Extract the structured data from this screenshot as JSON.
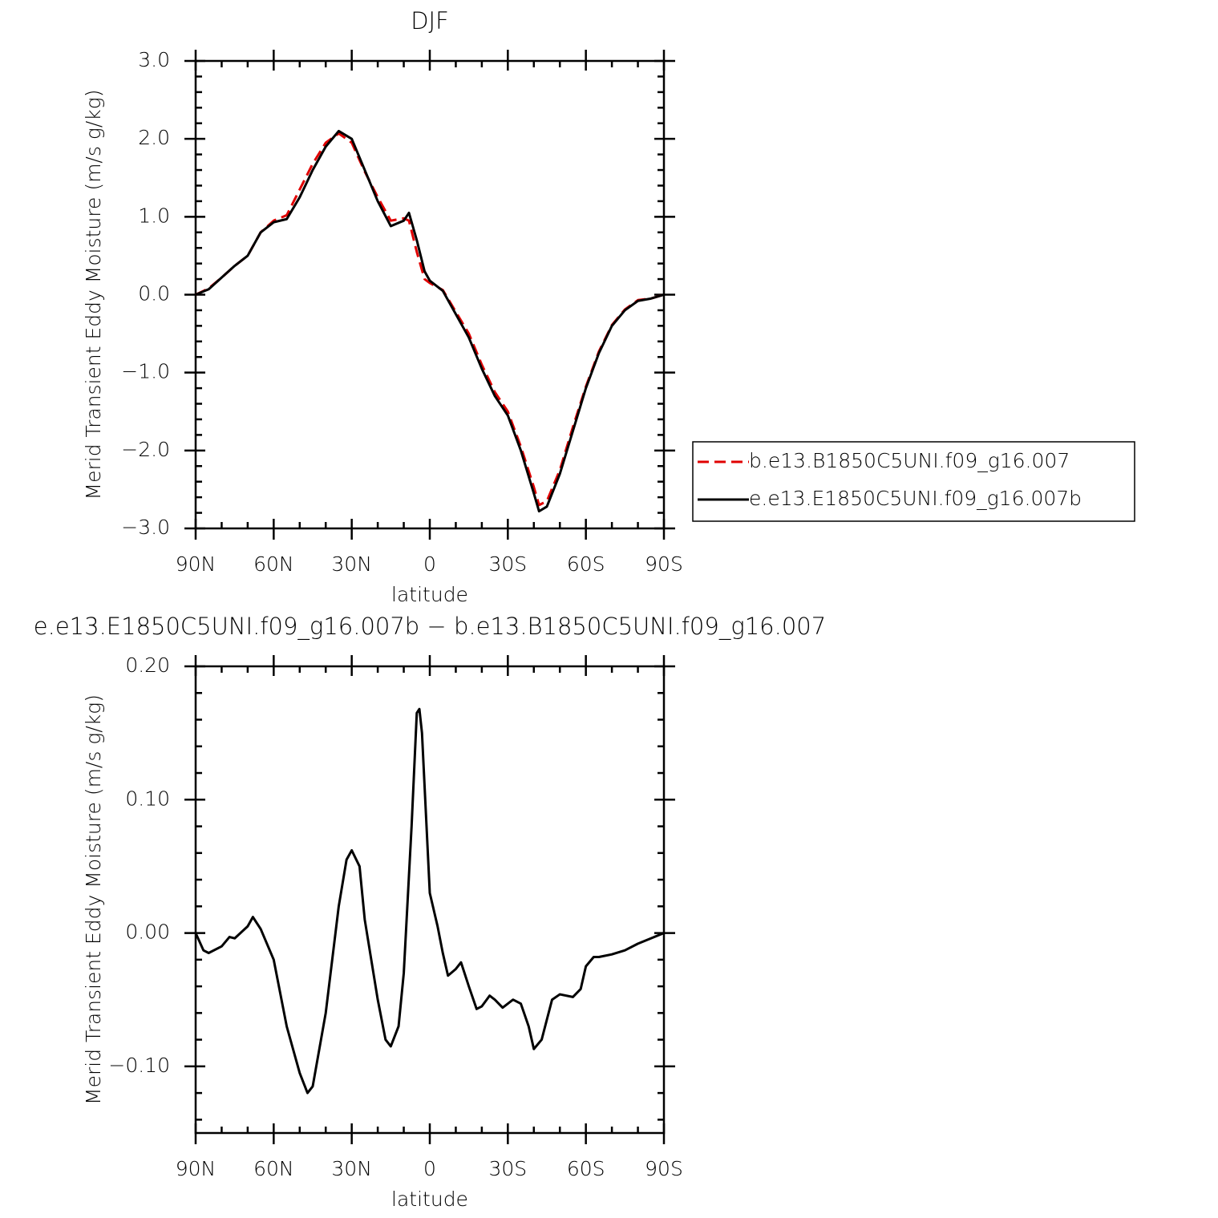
{
  "chart_data": [
    {
      "type": "line",
      "title": "DJF",
      "x_label": "latitude",
      "y_label": "Merid Transient Eddy Moisture (m/s g/kg)",
      "x": [
        90,
        85,
        80,
        75,
        70,
        65,
        60,
        55,
        50,
        45,
        40,
        35,
        30,
        25,
        20,
        15,
        10,
        8,
        5,
        2,
        0,
        -5,
        -10,
        -15,
        -20,
        -25,
        -30,
        -35,
        -40,
        -42,
        -45,
        -50,
        -55,
        -60,
        -65,
        -70,
        -75,
        -80,
        -85,
        -90
      ],
      "series": [
        {
          "name": "b.e13.B1850C5UNI.f09_g16.007",
          "color": "#e00000",
          "dashed": true,
          "values": [
            0,
            0.08,
            0.22,
            0.37,
            0.5,
            0.8,
            0.95,
            1.02,
            1.35,
            1.68,
            1.95,
            2.07,
            1.95,
            1.58,
            1.25,
            0.95,
            0.98,
            0.95,
            0.55,
            0.2,
            0.15,
            0.06,
            -0.22,
            -0.5,
            -0.9,
            -1.25,
            -1.5,
            -1.95,
            -2.47,
            -2.7,
            -2.65,
            -2.25,
            -1.7,
            -1.18,
            -0.73,
            -0.39,
            -0.19,
            -0.07,
            -0.05,
            0
          ]
        },
        {
          "name": "e.e13.E1850C5UNI.f09_g16.007b",
          "color": "#000000",
          "dashed": false,
          "values": [
            0,
            0.07,
            0.22,
            0.37,
            0.5,
            0.8,
            0.93,
            0.97,
            1.25,
            1.6,
            1.9,
            2.1,
            2.0,
            1.6,
            1.2,
            0.88,
            0.95,
            1.05,
            0.7,
            0.3,
            0.18,
            0.05,
            -0.25,
            -0.55,
            -0.95,
            -1.3,
            -1.55,
            -2.0,
            -2.55,
            -2.78,
            -2.72,
            -2.3,
            -1.75,
            -1.2,
            -0.75,
            -0.4,
            -0.2,
            -0.08,
            -0.05,
            0
          ]
        }
      ],
      "xlim": [
        90,
        -90
      ],
      "xticks": [
        {
          "value": 90,
          "label": "90N"
        },
        {
          "value": 60,
          "label": "60N"
        },
        {
          "value": 30,
          "label": "30N"
        },
        0,
        {
          "value": -30,
          "label": "30S"
        },
        {
          "value": -60,
          "label": "60S"
        },
        {
          "value": -90,
          "label": "90S"
        }
      ],
      "ylim": [
        -3,
        3
      ],
      "yticks": [
        {
          "value": 3,
          "label": "3.0"
        },
        {
          "value": 2,
          "label": "2.0"
        },
        {
          "value": 1,
          "label": "1.0"
        },
        {
          "value": 0,
          "label": "0.0"
        },
        {
          "value": -1,
          "label": "−1.0"
        },
        {
          "value": -2,
          "label": "−2.0"
        },
        {
          "value": -3,
          "label": "−3.0"
        }
      ],
      "legend": "right"
    },
    {
      "type": "line",
      "title": "e.e13.E1850C5UNI.f09_g16.007b − b.e13.B1850C5UNI.f09_g16.007",
      "x_label": "latitude",
      "y_label": "Merid Transient Eddy Moisture (m/s g/kg)",
      "x": [
        90,
        87,
        85,
        80,
        77,
        75,
        70,
        68,
        65,
        60,
        55,
        50,
        47,
        45,
        40,
        35,
        32,
        30,
        27,
        25,
        20,
        17,
        15,
        12,
        10,
        7,
        5,
        4,
        3,
        0,
        -3,
        -5,
        -7,
        -10,
        -12,
        -15,
        -18,
        -20,
        -23,
        -25,
        -28,
        -30,
        -32,
        -35,
        -38,
        -40,
        -43,
        -47,
        -50,
        -55,
        -58,
        -60,
        -63,
        -65,
        -70,
        -75,
        -80,
        -85,
        -90
      ],
      "values": [
        0,
        -0.013,
        -0.015,
        -0.01,
        -0.003,
        -0.004,
        0.005,
        0.012,
        0.003,
        -0.02,
        -0.07,
        -0.105,
        -0.12,
        -0.115,
        -0.06,
        0.02,
        0.055,
        0.062,
        0.05,
        0.01,
        -0.05,
        -0.08,
        -0.085,
        -0.07,
        -0.03,
        0.08,
        0.165,
        0.168,
        0.15,
        0.03,
        0.005,
        -0.015,
        -0.032,
        -0.027,
        -0.022,
        -0.04,
        -0.057,
        -0.055,
        -0.047,
        -0.05,
        -0.056,
        -0.053,
        -0.05,
        -0.053,
        -0.07,
        -0.087,
        -0.08,
        -0.05,
        -0.046,
        -0.048,
        -0.042,
        -0.025,
        -0.018,
        -0.018,
        -0.016,
        -0.013,
        -0.008,
        -0.004,
        0
      ],
      "color": "#000000",
      "xlim": [
        90,
        -90
      ],
      "xticks": [
        {
          "value": 90,
          "label": "90N"
        },
        {
          "value": 60,
          "label": "60N"
        },
        {
          "value": 30,
          "label": "30N"
        },
        0,
        {
          "value": -30,
          "label": "30S"
        },
        {
          "value": -60,
          "label": "60S"
        },
        {
          "value": -90,
          "label": "90S"
        }
      ],
      "ylim": [
        -0.15,
        0.2
      ],
      "yticks": [
        {
          "value": 0.2,
          "label": "0.20"
        },
        {
          "value": 0.1,
          "label": "0.10"
        },
        {
          "value": 0,
          "label": "0.00"
        },
        {
          "value": -0.1,
          "label": "−0.10"
        }
      ]
    }
  ]
}
